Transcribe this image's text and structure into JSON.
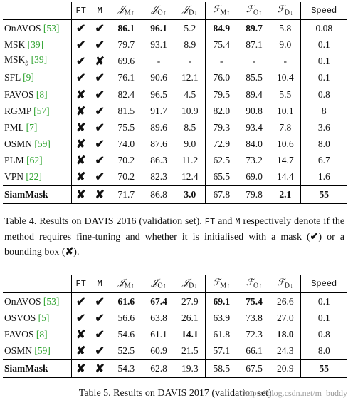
{
  "table1": {
    "headers": {
      "method": "",
      "ft": "FT",
      "m": "M",
      "jm": "𝒥",
      "jm_sub": "M↑",
      "jo": "𝒥",
      "jo_sub": "O↑",
      "jd": "𝒥",
      "jd_sub": "D↓",
      "fm": "ℱ",
      "fm_sub": "M↑",
      "fo": "ℱ",
      "fo_sub": "O↑",
      "fd": "ℱ",
      "fd_sub": "D↓",
      "speed": "Speed"
    },
    "rows": [
      {
        "name": "OnAVOS",
        "ref": "[53]",
        "sub": "",
        "ft": "✔",
        "m": "✔",
        "jm": "86.1",
        "jo": "96.1",
        "jd": "5.2",
        "fm": "84.9",
        "fo": "89.7",
        "fd": "5.8",
        "speed": "0.08"
      },
      {
        "name": "MSK",
        "ref": "[39]",
        "sub": "",
        "ft": "✔",
        "m": "✔",
        "jm": "79.7",
        "jo": "93.1",
        "jd": "8.9",
        "fm": "75.4",
        "fo": "87.1",
        "fd": "9.0",
        "speed": "0.1"
      },
      {
        "name": "MSK",
        "ref": "[39]",
        "sub": "b",
        "ft": "✔",
        "m": "✘",
        "jm": "69.6",
        "jo": "-",
        "jd": "-",
        "fm": "-",
        "fo": "-",
        "fd": "-",
        "speed": "0.1"
      },
      {
        "name": "SFL",
        "ref": "[9]",
        "sub": "",
        "ft": "✔",
        "m": "✔",
        "jm": "76.1",
        "jo": "90.6",
        "jd": "12.1",
        "fm": "76.0",
        "fo": "85.5",
        "fd": "10.4",
        "speed": "0.1"
      },
      {
        "name": "FAVOS",
        "ref": "[8]",
        "sub": "",
        "ft": "✘",
        "m": "✔",
        "jm": "82.4",
        "jo": "96.5",
        "jd": "4.5",
        "fm": "79.5",
        "fo": "89.4",
        "fd": "5.5",
        "speed": "0.8"
      },
      {
        "name": "RGMP",
        "ref": "[57]",
        "sub": "",
        "ft": "✘",
        "m": "✔",
        "jm": "81.5",
        "jo": "91.7",
        "jd": "10.9",
        "fm": "82.0",
        "fo": "90.8",
        "fd": "10.1",
        "speed": "8"
      },
      {
        "name": "PML",
        "ref": "[7]",
        "sub": "",
        "ft": "✘",
        "m": "✔",
        "jm": "75.5",
        "jo": "89.6",
        "jd": "8.5",
        "fm": "79.3",
        "fo": "93.4",
        "fd": "7.8",
        "speed": "3.6"
      },
      {
        "name": "OSMN",
        "ref": "[59]",
        "sub": "",
        "ft": "✘",
        "m": "✔",
        "jm": "74.0",
        "jo": "87.6",
        "jd": "9.0",
        "fm": "72.9",
        "fo": "84.0",
        "fd": "10.6",
        "speed": "8.0"
      },
      {
        "name": "PLM",
        "ref": "[62]",
        "sub": "",
        "ft": "✘",
        "m": "✔",
        "jm": "70.2",
        "jo": "86.3",
        "jd": "11.2",
        "fm": "62.5",
        "fo": "73.2",
        "fd": "14.7",
        "speed": "6.7"
      },
      {
        "name": "VPN",
        "ref": "[22]",
        "sub": "",
        "ft": "✘",
        "m": "✔",
        "jm": "70.2",
        "jo": "82.3",
        "jd": "12.4",
        "fm": "65.5",
        "fo": "69.0",
        "fd": "14.4",
        "speed": "1.6"
      },
      {
        "name": "SiamMask",
        "ref": "",
        "sub": "",
        "ft": "✘",
        "m": "✘",
        "jm": "71.7",
        "jo": "86.8",
        "jd": "3.0",
        "fm": "67.8",
        "fo": "79.8",
        "fd": "2.1",
        "speed": "55"
      }
    ],
    "caption": {
      "part1": "Table 4. Results on DAVIS 2016 (validation set).",
      "code_ft": "FT",
      "part2": "and",
      "code_m": "M",
      "part3": "respectively denote if the method requires fine-tuning and whether it is initialised with a mask (",
      "check": "✔",
      "part4": ") or a bounding box (",
      "cross": "✘",
      "part5": ")."
    }
  },
  "table2": {
    "headers": {
      "method": "",
      "ft": "FT",
      "m": "M",
      "jm": "𝒥",
      "jm_sub": "M↑",
      "jo": "𝒥",
      "jo_sub": "O↑",
      "jd": "𝒥",
      "jd_sub": "D↓",
      "fm": "ℱ",
      "fm_sub": "M↑",
      "fo": "ℱ",
      "fo_sub": "O↑",
      "fd": "ℱ",
      "fd_sub": "D↓",
      "speed": "Speed"
    },
    "rows": [
      {
        "name": "OnAVOS",
        "ref": "[53]",
        "ft": "✔",
        "m": "✔",
        "jm": "61.6",
        "jo": "67.4",
        "jd": "27.9",
        "fm": "69.1",
        "fo": "75.4",
        "fd": "26.6",
        "speed": "0.1"
      },
      {
        "name": "OSVOS",
        "ref": "[5]",
        "ft": "✔",
        "m": "✔",
        "jm": "56.6",
        "jo": "63.8",
        "jd": "26.1",
        "fm": "63.9",
        "fo": "73.8",
        "fd": "27.0",
        "speed": "0.1"
      },
      {
        "name": "FAVOS",
        "ref": "[8]",
        "ft": "✘",
        "m": "✔",
        "jm": "54.6",
        "jo": "61.1",
        "jd": "14.1",
        "fm": "61.8",
        "fo": "72.3",
        "fd": "18.0",
        "speed": "0.8"
      },
      {
        "name": "OSMN",
        "ref": "[59]",
        "ft": "✘",
        "m": "✔",
        "jm": "52.5",
        "jo": "60.9",
        "jd": "21.5",
        "fm": "57.1",
        "fo": "66.1",
        "fd": "24.3",
        "speed": "8.0"
      },
      {
        "name": "SiamMask",
        "ref": "",
        "ft": "✘",
        "m": "✘",
        "jm": "54.3",
        "jo": "62.8",
        "jd": "19.3",
        "fm": "58.5",
        "fo": "67.5",
        "fd": "20.9",
        "speed": "55"
      }
    ],
    "caption": "Table 5. Results on DAVIS 2017 (validation set).",
    "watermark": "https://blog.csdn.net/m_buddy"
  }
}
